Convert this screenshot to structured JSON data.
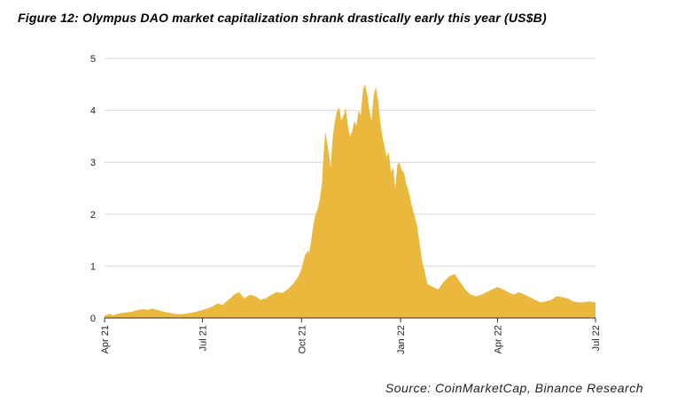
{
  "title": "Figure 12: Olympus DAO market capitalization shrank drastically early this year (US$B)",
  "source": "Source: CoinMarketCap, Binance Research",
  "chart_data": {
    "type": "area",
    "title": "Figure 12: Olympus DAO market capitalization shrank drastically early this year (US$B)",
    "xlabel": "",
    "ylabel": "US$B",
    "ylim": [
      0,
      5
    ],
    "yticks": [
      0,
      1,
      2,
      3,
      4,
      5
    ],
    "grid": true,
    "legend": "none",
    "color": "#EAB83D",
    "x_ticks": [
      "Apr 21",
      "Jul 21",
      "Oct 21",
      "Jan 22",
      "Apr 22",
      "Jul 22"
    ],
    "x_tick_days": [
      0,
      91,
      183,
      275,
      365,
      456
    ],
    "x_range_days": [
      0,
      456
    ],
    "series": [
      {
        "name": "Market cap (US$B)",
        "x": [
          0,
          5,
          8,
          12,
          18,
          25,
          30,
          35,
          40,
          45,
          50,
          55,
          60,
          65,
          70,
          75,
          80,
          85,
          90,
          95,
          100,
          105,
          110,
          112,
          115,
          118,
          120,
          125,
          128,
          130,
          135,
          140,
          145,
          150,
          155,
          160,
          165,
          170,
          175,
          180,
          183,
          186,
          189,
          190,
          192,
          194,
          196,
          198,
          200,
          202,
          203,
          205,
          208,
          210,
          212,
          214,
          216,
          218,
          220,
          222,
          224,
          226,
          228,
          230,
          232,
          234,
          236,
          238,
          240,
          242,
          244,
          246,
          248,
          250,
          252,
          254,
          256,
          258,
          260,
          262,
          264,
          266,
          268,
          270,
          272,
          274,
          276,
          278,
          280,
          283,
          285,
          290,
          295,
          300,
          305,
          310,
          315,
          320,
          325,
          330,
          335,
          340,
          345,
          350,
          355,
          360,
          365,
          370,
          375,
          380,
          385,
          390,
          395,
          400,
          405,
          410,
          415,
          420,
          425,
          430,
          435,
          440,
          445,
          450,
          456
        ],
        "values": [
          0.05,
          0.08,
          0.05,
          0.08,
          0.1,
          0.12,
          0.15,
          0.17,
          0.16,
          0.18,
          0.15,
          0.12,
          0.1,
          0.08,
          0.07,
          0.08,
          0.1,
          0.12,
          0.15,
          0.18,
          0.22,
          0.28,
          0.25,
          0.3,
          0.35,
          0.4,
          0.45,
          0.5,
          0.42,
          0.38,
          0.45,
          0.42,
          0.35,
          0.38,
          0.45,
          0.5,
          0.48,
          0.55,
          0.65,
          0.8,
          0.95,
          1.2,
          1.3,
          1.25,
          1.5,
          1.8,
          2.0,
          2.1,
          2.3,
          2.6,
          3.0,
          3.6,
          3.2,
          2.9,
          3.5,
          3.8,
          4.0,
          4.05,
          3.8,
          3.9,
          4.05,
          3.7,
          3.5,
          3.6,
          3.8,
          3.7,
          4.0,
          3.9,
          4.4,
          4.5,
          4.3,
          4.0,
          3.8,
          4.3,
          4.45,
          4.2,
          3.8,
          3.5,
          3.3,
          3.1,
          3.2,
          2.8,
          2.9,
          2.5,
          2.95,
          3.0,
          2.85,
          2.8,
          2.6,
          2.4,
          2.2,
          1.8,
          1.1,
          0.65,
          0.6,
          0.55,
          0.7,
          0.8,
          0.85,
          0.7,
          0.55,
          0.45,
          0.42,
          0.45,
          0.5,
          0.55,
          0.6,
          0.55,
          0.5,
          0.45,
          0.5,
          0.45,
          0.4,
          0.35,
          0.3,
          0.32,
          0.35,
          0.42,
          0.4,
          0.38,
          0.32,
          0.3,
          0.3,
          0.32,
          0.3
        ]
      }
    ]
  }
}
